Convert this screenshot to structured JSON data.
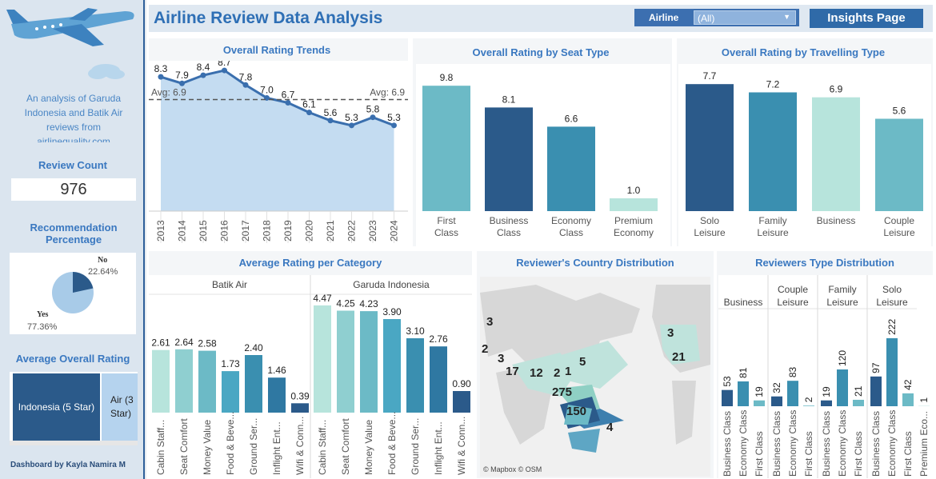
{
  "colors": {
    "accent": "#3a78c0",
    "dark": "#2b5a8a",
    "mid": "#3a8fb0",
    "light": "#6cbac6",
    "pale": "#b7e4dc"
  },
  "sidebar": {
    "description": "An analysis of Garuda Indonesia and Batik Air reviews from airlinequality.com",
    "review_count_title": "Review Count",
    "review_count": "976",
    "recommendation_title": "Recommendation Percentage",
    "rec_no_label": "No",
    "rec_no_value": "22.64%",
    "rec_yes_label": "Yes",
    "rec_yes_value": "77.36%",
    "avg_overall_title": "Average Overall Rating",
    "treemap_a": "Indonesia (5 Star)",
    "treemap_b": "Air (3 Star)",
    "credit": "Dashboard by Kayla Namira M"
  },
  "header": {
    "title": "Airline Review Data Analysis",
    "filter_label": "Airline",
    "filter_value": "(All)",
    "insights_button": "Insights Page"
  },
  "chart_data": [
    {
      "id": "trend",
      "type": "area",
      "title": "Overall Rating Trends",
      "categories": [
        "2013",
        "2014",
        "2015",
        "2016",
        "2017",
        "2018",
        "2019",
        "2020",
        "2021",
        "2022",
        "2023",
        "2024"
      ],
      "values": [
        8.3,
        7.9,
        8.4,
        8.7,
        7.8,
        7.0,
        6.7,
        6.1,
        5.6,
        5.3,
        5.8,
        5.3
      ],
      "reference_line": {
        "label_left": "Avg: 6.9",
        "label_right": "Avg: 6.9",
        "value": 6.9
      },
      "ylim": [
        0,
        9
      ]
    },
    {
      "id": "seat",
      "type": "bar",
      "title": "Overall Rating by Seat Type",
      "categories": [
        "First Class",
        "Business Class",
        "Economy Class",
        "Premium Economy"
      ],
      "values": [
        9.8,
        8.1,
        6.6,
        1.0
      ],
      "ylim": [
        0,
        10
      ]
    },
    {
      "id": "travel",
      "type": "bar",
      "title": "Overall Rating by Travelling Type",
      "categories": [
        "Solo Leisure",
        "Family Leisure",
        "Business",
        "Couple Leisure"
      ],
      "values": [
        7.7,
        7.2,
        6.9,
        5.6
      ],
      "ylim": [
        0,
        8
      ]
    },
    {
      "id": "category",
      "type": "bar",
      "title": "Average Rating per Category",
      "panels": [
        "Batik Air",
        "Garuda Indonesia"
      ],
      "categories": [
        "Cabin Staff...",
        "Seat Comfort",
        "Money Value",
        "Food & Beve...",
        "Ground Ser...",
        "Inflight Ent...",
        "Wifi & Conn..."
      ],
      "series": [
        {
          "name": "Batik Air",
          "values": [
            2.61,
            2.64,
            2.58,
            1.73,
            2.4,
            1.46,
            0.39
          ]
        },
        {
          "name": "Garuda Indonesia",
          "values": [
            4.47,
            4.25,
            4.23,
            3.9,
            3.1,
            2.76,
            0.9
          ]
        }
      ],
      "ylim": [
        0,
        5
      ]
    },
    {
      "id": "country",
      "type": "map",
      "title": "Reviewer's Country Distribution",
      "labels": [
        "3",
        "2",
        "3",
        "17",
        "12",
        "2",
        "1",
        "5",
        "275",
        "150",
        "4",
        "3",
        "21"
      ],
      "attribution": "© Mapbox  © OSM"
    },
    {
      "id": "reviewer",
      "type": "bar",
      "title": "Reviewers Type Distribution",
      "panels": [
        "Business",
        "Couple Leisure",
        "Family Leisure",
        "Solo Leisure"
      ],
      "categories": [
        "Business Class",
        "Economy Class",
        "First Class",
        "Premium Eco..."
      ],
      "series": [
        {
          "name": "Business",
          "values": [
            53,
            81,
            19,
            null
          ]
        },
        {
          "name": "Couple Leisure",
          "values": [
            32,
            83,
            2,
            null
          ]
        },
        {
          "name": "Family Leisure",
          "values": [
            19,
            120,
            21,
            null
          ]
        },
        {
          "name": "Solo Leisure",
          "values": [
            97,
            222,
            42,
            1
          ]
        }
      ],
      "ylim": [
        0,
        240
      ]
    }
  ]
}
